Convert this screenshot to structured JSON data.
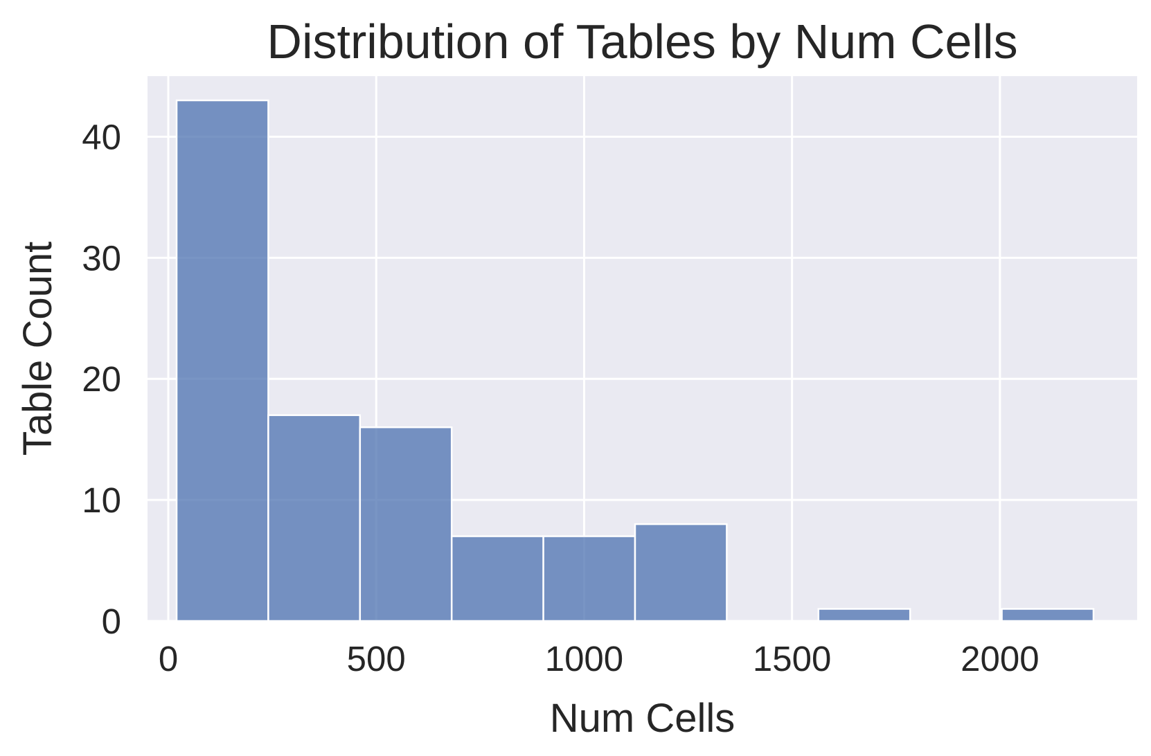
{
  "chart_data": {
    "type": "bar",
    "title": "Distribution of Tables by Num Cells",
    "xlabel": "Num Cells",
    "ylabel": "Table Count",
    "xlim": [
      -50,
      2330
    ],
    "ylim": [
      0,
      45
    ],
    "xticks": [
      0,
      500,
      1000,
      1500,
      2000
    ],
    "yticks": [
      0,
      10,
      20,
      30,
      40
    ],
    "grid": true,
    "legend": "none",
    "bin_edges": [
      20,
      240.5,
      461,
      681.5,
      902,
      1122.5,
      1343,
      1563.5,
      1784,
      2004.5,
      2225
    ],
    "values": [
      43,
      17,
      16,
      7,
      7,
      8,
      0,
      1,
      0,
      1
    ],
    "colors": {
      "plot_background": "#eaeaf2",
      "grid": "#ffffff",
      "bar_fill": "#4c72b0",
      "bar_edge": "#ffffff",
      "text": "#262626"
    }
  }
}
